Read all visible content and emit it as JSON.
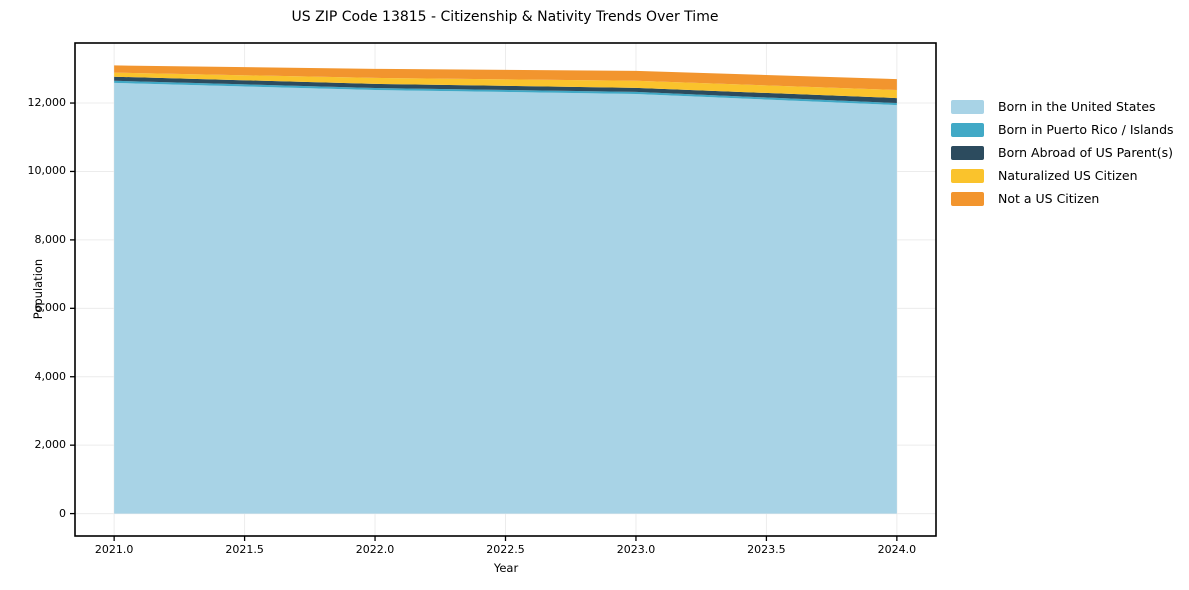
{
  "title": "US ZIP Code 13815 - Citizenship & Nativity Trends Over Time",
  "chart_data": {
    "type": "area",
    "stacked": true,
    "title": "US ZIP Code 13815 - Citizenship & Nativity Trends Over Time",
    "xlabel": "Year",
    "ylabel": "Population",
    "x": [
      2021,
      2022,
      2023,
      2024
    ],
    "series": [
      {
        "name": "Born in the United States",
        "color": "#a8d3e6",
        "values": [
          12590,
          12380,
          12265,
          11940
        ]
      },
      {
        "name": "Born in Puerto Rico / Islands",
        "color": "#41a9c6",
        "values": [
          60,
          60,
          60,
          60
        ]
      },
      {
        "name": "Born Abroad of US Parent(s)",
        "color": "#2c4b5e",
        "values": [
          120,
          120,
          120,
          145
        ]
      },
      {
        "name": "Naturalized US Citizen",
        "color": "#fac32c",
        "values": [
          120,
          175,
          205,
          235
        ]
      },
      {
        "name": "Not a US Citizen",
        "color": "#f2952e",
        "values": [
          210,
          265,
          290,
          320
        ]
      }
    ],
    "totals": [
      13100,
      13000,
      12940,
      12700
    ],
    "x_ticks": [
      2021.0,
      2021.5,
      2022.0,
      2022.5,
      2023.0,
      2023.5,
      2024.0
    ],
    "x_tick_labels": [
      "2021.0",
      "2021.5",
      "2022.0",
      "2022.5",
      "2023.0",
      "2023.5",
      "2024.0"
    ],
    "y_ticks": [
      0,
      2000,
      4000,
      6000,
      8000,
      10000,
      12000
    ],
    "y_tick_labels": [
      "0",
      "2,000",
      "4,000",
      "6,000",
      "8,000",
      "10,000",
      "12,000"
    ],
    "xlim": [
      2020.85,
      2024.15
    ],
    "ylim": [
      -655,
      13755
    ],
    "grid": true,
    "grid_color": "#ececec",
    "axis_color": "#000000",
    "legend_position": "right-outside"
  }
}
